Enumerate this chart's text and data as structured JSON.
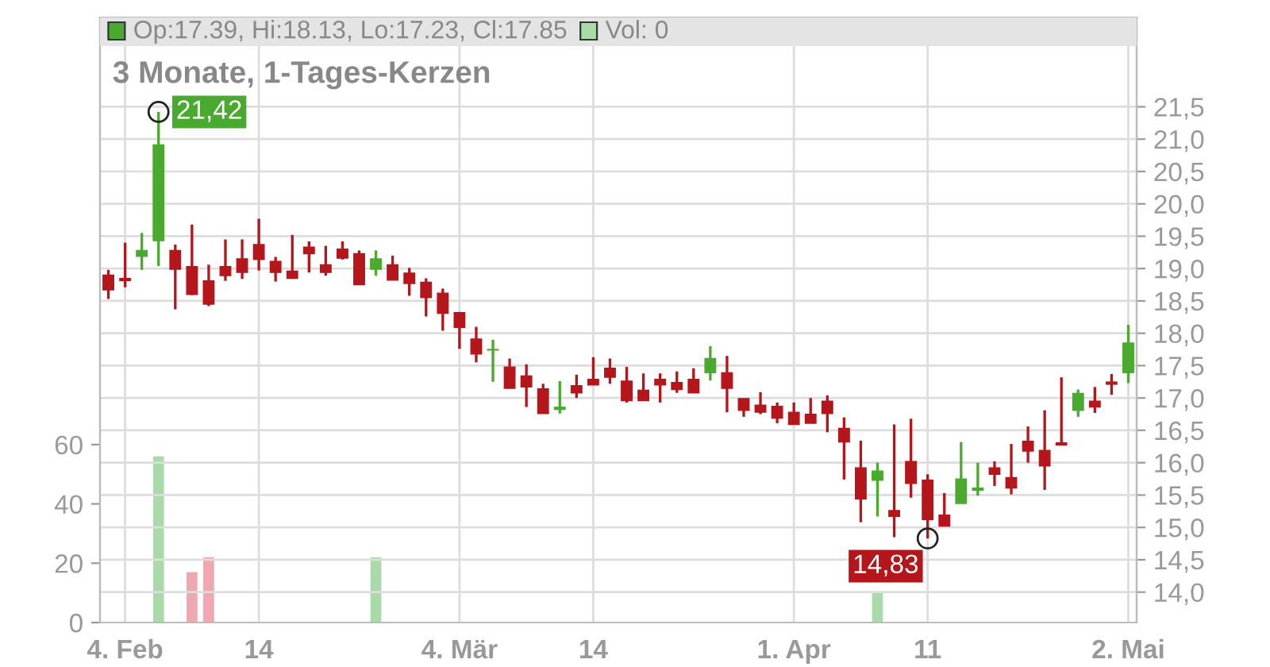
{
  "chart_data": {
    "type": "candlestick",
    "title": "3 Monate, 1-Tages-Kerzen",
    "categories": [
      null,
      "4. Feb",
      null,
      null,
      null,
      null,
      null,
      null,
      null,
      "14",
      null,
      null,
      null,
      null,
      null,
      null,
      null,
      null,
      null,
      null,
      null,
      "4. Mär",
      null,
      null,
      null,
      null,
      null,
      null,
      null,
      "14",
      null,
      null,
      null,
      null,
      null,
      null,
      null,
      null,
      null,
      null,
      null,
      "1. Apr",
      null,
      null,
      null,
      null,
      null,
      null,
      null,
      "11",
      null,
      null,
      null,
      null,
      null,
      null,
      null,
      null,
      null,
      null,
      null,
      "2. Mai"
    ],
    "ohlc": [
      [
        18.9,
        18.98,
        18.53,
        18.67
      ],
      [
        18.83,
        19.4,
        18.71,
        18.83
      ],
      [
        19.19,
        19.55,
        18.98,
        19.28
      ],
      [
        19.43,
        21.42,
        19.04,
        20.91
      ],
      [
        19.28,
        19.37,
        18.37,
        18.99
      ],
      [
        19.03,
        19.68,
        18.59,
        18.6
      ],
      [
        18.81,
        19.06,
        18.42,
        18.45
      ],
      [
        19.03,
        19.45,
        18.81,
        18.89
      ],
      [
        19.15,
        19.45,
        18.84,
        18.94
      ],
      [
        19.37,
        19.77,
        18.97,
        19.14
      ],
      [
        19.11,
        19.18,
        18.8,
        18.94
      ],
      [
        18.96,
        19.52,
        18.85,
        18.85
      ],
      [
        19.33,
        19.42,
        18.94,
        19.23
      ],
      [
        19.06,
        19.35,
        18.89,
        18.94
      ],
      [
        19.3,
        19.42,
        19.14,
        19.16
      ],
      [
        19.23,
        19.28,
        18.75,
        18.75
      ],
      [
        18.99,
        19.28,
        18.89,
        19.15
      ],
      [
        19.06,
        19.2,
        18.82,
        18.82
      ],
      [
        18.93,
        19.01,
        18.58,
        18.77
      ],
      [
        18.79,
        18.85,
        18.26,
        18.55
      ],
      [
        18.62,
        18.69,
        18.04,
        18.31
      ],
      [
        18.32,
        18.33,
        17.76,
        18.09
      ],
      [
        17.91,
        18.1,
        17.55,
        17.68
      ],
      [
        17.74,
        17.9,
        17.25,
        17.75
      ],
      [
        17.48,
        17.61,
        17.15,
        17.15
      ],
      [
        17.34,
        17.52,
        16.86,
        17.17
      ],
      [
        17.14,
        17.22,
        16.76,
        16.76
      ],
      [
        16.84,
        17.26,
        16.76,
        16.84
      ],
      [
        17.19,
        17.36,
        17.0,
        17.08
      ],
      [
        17.29,
        17.63,
        17.2,
        17.2
      ],
      [
        17.46,
        17.61,
        17.22,
        17.32
      ],
      [
        17.26,
        17.48,
        16.93,
        16.96
      ],
      [
        17.12,
        17.38,
        16.96,
        16.96
      ],
      [
        17.29,
        17.38,
        16.93,
        17.2
      ],
      [
        17.24,
        17.41,
        17.08,
        17.13
      ],
      [
        17.29,
        17.46,
        17.08,
        17.08
      ],
      [
        17.39,
        17.8,
        17.27,
        17.61
      ],
      [
        17.39,
        17.65,
        16.78,
        17.15
      ],
      [
        16.99,
        16.99,
        16.71,
        16.81
      ],
      [
        16.89,
        17.09,
        16.75,
        16.78
      ],
      [
        16.87,
        16.93,
        16.61,
        16.69
      ],
      [
        16.78,
        16.93,
        16.59,
        16.59
      ],
      [
        16.75,
        17.0,
        16.61,
        16.61
      ],
      [
        16.95,
        17.04,
        16.47,
        16.76
      ],
      [
        16.53,
        16.7,
        15.74,
        16.32
      ],
      [
        15.92,
        16.34,
        15.08,
        15.44
      ],
      [
        15.73,
        16.0,
        15.17,
        15.87
      ],
      [
        15.26,
        16.59,
        14.85,
        15.17
      ],
      [
        16.02,
        16.68,
        15.46,
        15.68
      ],
      [
        15.73,
        15.82,
        14.83,
        15.12
      ],
      [
        15.19,
        15.53,
        15.02,
        15.02
      ],
      [
        15.37,
        16.32,
        15.37,
        15.75
      ],
      [
        15.59,
        16.0,
        15.49,
        15.59
      ],
      [
        15.92,
        16.02,
        15.64,
        15.82
      ],
      [
        15.77,
        16.29,
        15.51,
        15.61
      ],
      [
        16.33,
        16.56,
        16.0,
        16.18
      ],
      [
        16.19,
        16.81,
        15.58,
        15.95
      ],
      [
        16.29,
        17.32,
        16.29,
        16.29
      ],
      [
        16.81,
        17.13,
        16.71,
        17.07
      ],
      [
        16.95,
        17.17,
        16.77,
        16.86
      ],
      [
        17.23,
        17.37,
        17.05,
        17.23
      ],
      [
        17.39,
        18.13,
        17.23,
        17.85
      ]
    ],
    "colors": [
      "#b5161b",
      "#b5161b",
      "#4aaa30",
      "#4aaa30",
      "#b5161b",
      "#b5161b",
      "#b5161b",
      "#b5161b",
      "#b5161b",
      "#b5161b",
      "#b5161b",
      "#b5161b",
      "#b5161b",
      "#b5161b",
      "#b5161b",
      "#b5161b",
      "#4aaa30",
      "#b5161b",
      "#b5161b",
      "#b5161b",
      "#b5161b",
      "#b5161b",
      "#b5161b",
      "#4aaa30",
      "#b5161b",
      "#b5161b",
      "#b5161b",
      "#4aaa30",
      "#b5161b",
      "#b5161b",
      "#b5161b",
      "#b5161b",
      "#b5161b",
      "#b5161b",
      "#b5161b",
      "#b5161b",
      "#4aaa30",
      "#b5161b",
      "#b5161b",
      "#b5161b",
      "#b5161b",
      "#b5161b",
      "#b5161b",
      "#b5161b",
      "#b5161b",
      "#b5161b",
      "#4aaa30",
      "#b5161b",
      "#b5161b",
      "#b5161b",
      "#b5161b",
      "#4aaa30",
      "#4aaa30",
      "#b5161b",
      "#b5161b",
      "#b5161b",
      "#b5161b",
      "#b5161b",
      "#4aaa30",
      "#b5161b",
      "#b5161b",
      "#4aaa30"
    ],
    "series": [
      {
        "type": "bar",
        "axis": "y2",
        "values": [
          0,
          0,
          0,
          56,
          0,
          17,
          22,
          0,
          0,
          0,
          0,
          0,
          0,
          0,
          0,
          0,
          22,
          0,
          0,
          0,
          0,
          0,
          0,
          0,
          0,
          0,
          0,
          0,
          0,
          0,
          0,
          0,
          0,
          0,
          0,
          0,
          0,
          0,
          0,
          0,
          0,
          0,
          0,
          0,
          0,
          0,
          10,
          0,
          0,
          0,
          0,
          0,
          0,
          0,
          0,
          0,
          0,
          0,
          0,
          0,
          0,
          0
        ],
        "colors": [
          "#a8dba8",
          "#a8dba8",
          "#a8dba8",
          "#a8dba8",
          "#f0a8b0",
          "#f0a8b0",
          "#f0a8b0",
          "#a8dba8",
          "#a8dba8",
          "#a8dba8",
          "#a8dba8",
          "#a8dba8",
          "#a8dba8",
          "#a8dba8",
          "#a8dba8",
          "#a8dba8",
          "#a8dba8",
          "#a8dba8",
          "#a8dba8",
          "#a8dba8",
          "#a8dba8",
          "#a8dba8",
          "#a8dba8",
          "#a8dba8",
          "#a8dba8",
          "#a8dba8",
          "#a8dba8",
          "#a8dba8",
          "#a8dba8",
          "#a8dba8",
          "#a8dba8",
          "#a8dba8",
          "#a8dba8",
          "#a8dba8",
          "#a8dba8",
          "#a8dba8",
          "#a8dba8",
          "#a8dba8",
          "#a8dba8",
          "#a8dba8",
          "#a8dba8",
          "#a8dba8",
          "#a8dba8",
          "#a8dba8",
          "#a8dba8",
          "#a8dba8",
          "#a8dba8",
          "#a8dba8",
          "#a8dba8",
          "#a8dba8",
          "#a8dba8",
          "#a8dba8",
          "#a8dba8",
          "#a8dba8",
          "#a8dba8",
          "#a8dba8",
          "#a8dba8",
          "#a8dba8",
          "#a8dba8",
          "#a8dba8",
          "#a8dba8",
          "#a8dba8"
        ]
      }
    ],
    "ylim": [
      13.53,
      22.88
    ],
    "yticks": [
      {
        "value": 14.0,
        "label": "14,0"
      },
      {
        "value": 14.5,
        "label": "14,5"
      },
      {
        "value": 15.0,
        "label": "15,0"
      },
      {
        "value": 15.5,
        "label": "15,5"
      },
      {
        "value": 16.0,
        "label": "16,0"
      },
      {
        "value": 16.5,
        "label": "16,5"
      },
      {
        "value": 17.0,
        "label": "17,0"
      },
      {
        "value": 17.5,
        "label": "17,5"
      },
      {
        "value": 18.0,
        "label": "18,0"
      },
      {
        "value": 18.5,
        "label": "18,5"
      },
      {
        "value": 19.0,
        "label": "19,0"
      },
      {
        "value": 19.5,
        "label": "19,5"
      },
      {
        "value": 20.0,
        "label": "20,0"
      },
      {
        "value": 20.5,
        "label": "20,5"
      },
      {
        "value": 21.0,
        "label": "21,0"
      },
      {
        "value": 21.5,
        "label": "21,5"
      }
    ],
    "y2lim": [
      0,
      204
    ],
    "y2ticks": [
      0,
      20,
      40,
      60
    ],
    "grid": true,
    "annotations": [
      "Op:17.39, Hi:18.13, Lo:17.23, Cl:17.85",
      "Vol: 0",
      "21,42",
      "14,83"
    ]
  }
}
